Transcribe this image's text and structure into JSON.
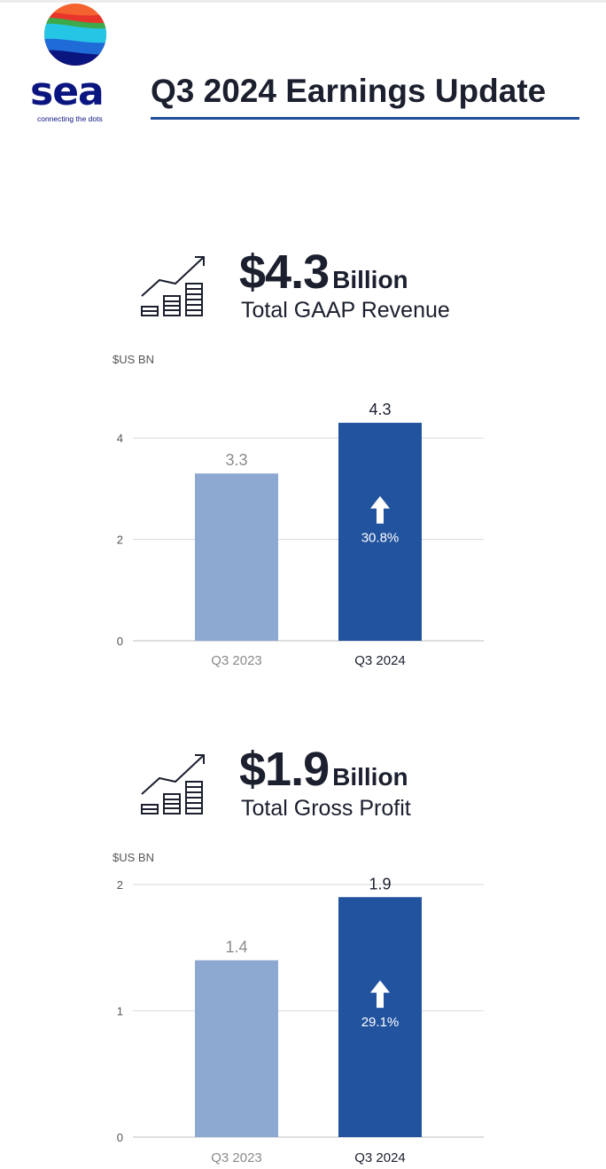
{
  "brand": {
    "name": "sea",
    "tagline": "connecting the dots",
    "colors": {
      "navy": "#0b1580",
      "orange": "#f3622f",
      "red": "#e8352b",
      "green": "#3caa4a",
      "cyan": "#25c5e6",
      "blue": "#1f6bd8"
    }
  },
  "header": {
    "title": "Q3 2024 Earnings Update"
  },
  "kpis": [
    {
      "value": "$4.3",
      "unit": "Billion",
      "label": "Total GAAP Revenue",
      "icon": "growth-chart-icon"
    },
    {
      "value": "$1.9",
      "unit": "Billion",
      "label": "Total Gross Profit",
      "icon": "growth-chart-icon"
    }
  ],
  "colors": {
    "bar_prior": "#8ea9d1",
    "bar_current": "#22539f",
    "grid": "#dadada",
    "axis_text": "#555555"
  },
  "chart_data": [
    {
      "type": "bar",
      "title": "Total GAAP Revenue",
      "ylabel": "$US BN",
      "xlabel": "",
      "categories": [
        "Q3 2023",
        "Q3 2024"
      ],
      "values": [
        3.3,
        4.3
      ],
      "value_labels": [
        "3.3",
        "4.3"
      ],
      "growth_label": "30.8%",
      "ylim": [
        0,
        4.3
      ],
      "yticks": [
        0,
        2,
        4
      ],
      "grid": true
    },
    {
      "type": "bar",
      "title": "Total Gross Profit",
      "ylabel": "$US BN",
      "xlabel": "",
      "categories": [
        "Q3 2023",
        "Q3 2024"
      ],
      "values": [
        1.4,
        1.9
      ],
      "value_labels": [
        "1.4",
        "1.9"
      ],
      "growth_label": "29.1%",
      "ylim": [
        0,
        2
      ],
      "yticks": [
        0,
        1,
        2
      ],
      "grid": true
    }
  ]
}
